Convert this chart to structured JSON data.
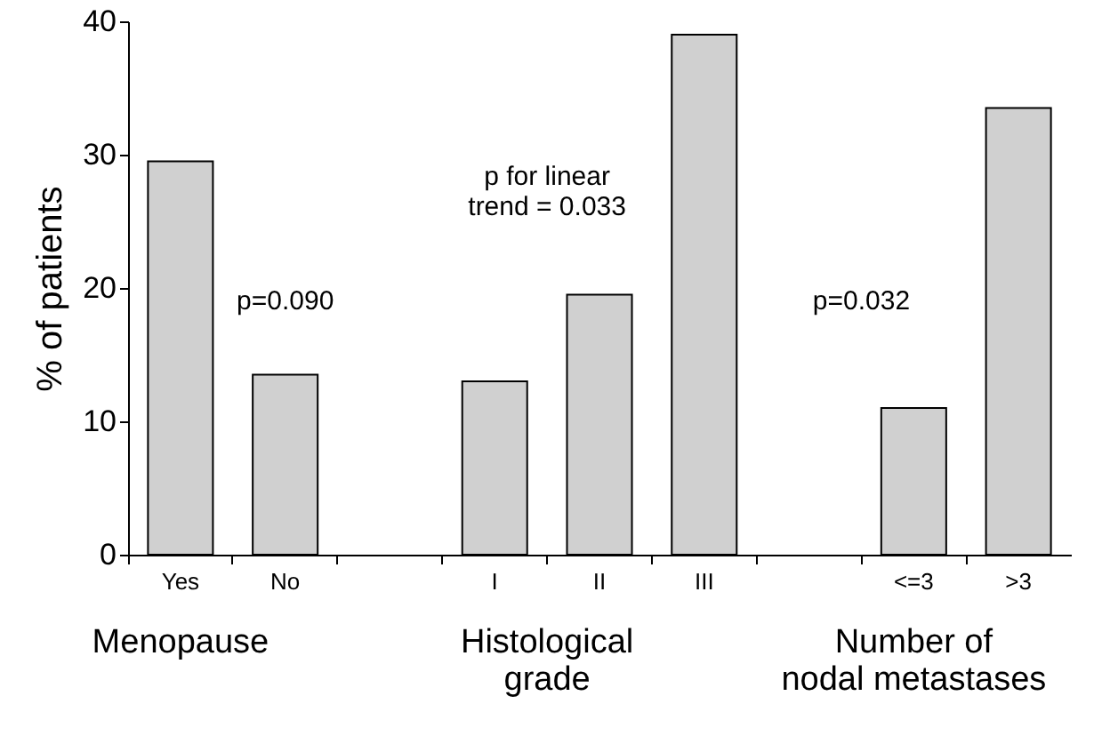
{
  "chart_data": {
    "type": "bar",
    "ylabel": "% of patients",
    "categories": [
      "Yes",
      "No",
      null,
      "I",
      "II",
      "III",
      null,
      "<=3",
      ">3"
    ],
    "values": [
      29.5,
      13.5,
      null,
      13,
      19.5,
      39,
      null,
      11,
      33.5
    ],
    "color": "#d0d0d0",
    "ylim": [
      0,
      40
    ],
    "yticks": [
      0,
      10,
      20,
      30,
      40
    ],
    "grid": false,
    "annotations": [
      "p=0.090",
      "p for linear\ntrend = 0.033",
      "p=0.032",
      "Menopause",
      "Histological\ngrade",
      "Number of\nnodal metastases"
    ]
  }
}
